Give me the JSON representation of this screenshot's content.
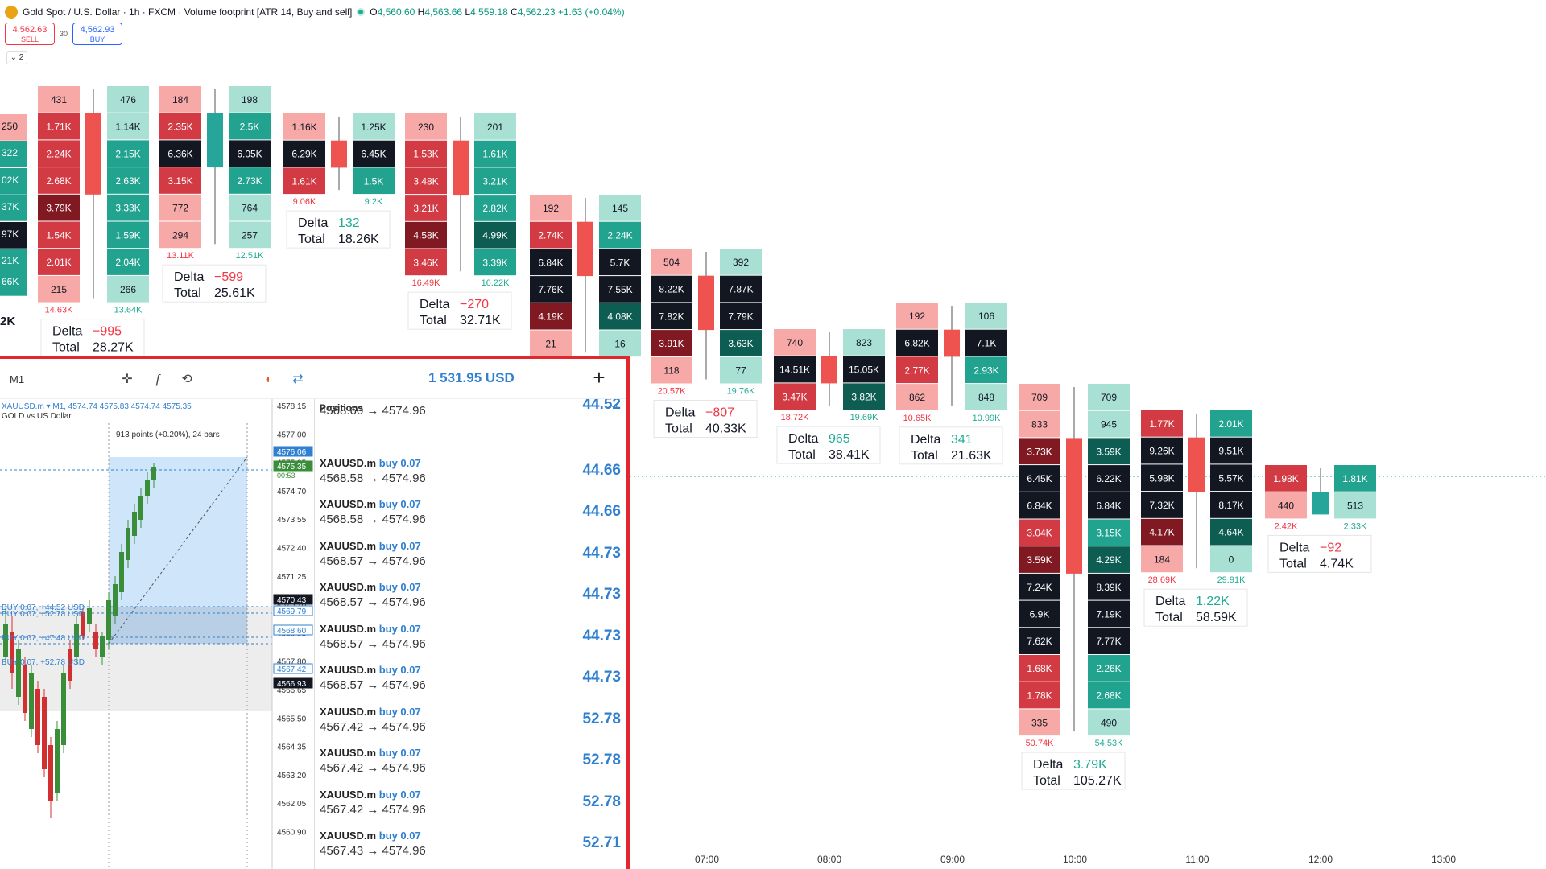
{
  "header": {
    "title": "Gold Spot / U.S. Dollar · 1h · FXCM · Volume footprint [ATR 14, Buy and sell]",
    "o": "4,560.60",
    "h": "4,563.66",
    "l": "4,559.18",
    "c": "4,562.23",
    "chg": "+1.63 (+0.04%)"
  },
  "trade": {
    "sell_price": "4,562.63",
    "sell_label": "SELL",
    "buy_price": "4,562.93",
    "buy_label": "BUY",
    "spread": "30"
  },
  "collapse_label": "⌄ 2",
  "colors": {
    "buy": "#26a69a",
    "sell": "#ef5350",
    "text_buy": "#22ab94",
    "text_sell": "#f23645",
    "accent": "#2f80d1"
  },
  "time_axis": [
    "07:00",
    "08:00",
    "09:00",
    "10:00",
    "11:00",
    "12:00",
    "13:00"
  ],
  "footprint": [
    {
      "sell": [
        "431",
        "1.71K",
        "2.24K",
        "2.68K",
        "3.79K",
        "1.54K",
        "2.01K",
        "215"
      ],
      "buy": [
        "476",
        "1.14K",
        "2.15K",
        "2.63K",
        "3.33K",
        "1.59K",
        "2.04K",
        "266"
      ],
      "sell_total": "14.63K",
      "buy_total": "13.64K",
      "delta": "−995",
      "delta_sign": "neg",
      "total": "28.27K",
      "candle": "down"
    },
    {
      "sell": [
        "184",
        "2.35K",
        "6.36K",
        "3.15K",
        "772",
        "294"
      ],
      "buy": [
        "198",
        "2.5K",
        "6.05K",
        "2.73K",
        "764",
        "257"
      ],
      "sell_total": "13.11K",
      "buy_total": "12.51K",
      "delta": "−599",
      "delta_sign": "neg",
      "total": "25.61K",
      "candle": "up"
    },
    {
      "sell": [
        "1.16K",
        "6.29K",
        "1.61K"
      ],
      "buy": [
        "1.25K",
        "6.45K",
        "1.5K"
      ],
      "sell_total": "9.06K",
      "buy_total": "9.2K",
      "delta": "132",
      "delta_sign": "pos",
      "total": "18.26K",
      "candle": "down"
    },
    {
      "sell": [
        "230",
        "1.53K",
        "3.48K",
        "3.21K",
        "4.58K",
        "3.46K"
      ],
      "buy": [
        "201",
        "1.61K",
        "3.21K",
        "2.82K",
        "4.99K",
        "3.39K"
      ],
      "sell_total": "16.49K",
      "buy_total": "16.22K",
      "delta": "−270",
      "delta_sign": "neg",
      "total": "32.71K",
      "candle": "down"
    },
    {
      "sell": [
        "192",
        "2.74K",
        "6.84K",
        "7.76K",
        "4.19K",
        "21"
      ],
      "buy": [
        "145",
        "2.24K",
        "5.7K",
        "7.55K",
        "4.08K",
        "16"
      ],
      "sell_total": "",
      "buy_total": "",
      "delta": "",
      "delta_sign": "neg",
      "total": "",
      "candle": "down"
    },
    {
      "sell": [
        "504",
        "8.22K",
        "7.82K",
        "3.91K",
        "118"
      ],
      "buy": [
        "392",
        "7.87K",
        "7.79K",
        "3.63K",
        "77"
      ],
      "sell_total": "20.57K",
      "buy_total": "19.76K",
      "delta": "−807",
      "delta_sign": "neg",
      "total": "40.33K",
      "candle": "down"
    },
    {
      "sell": [
        "740",
        "14.51K",
        "3.47K"
      ],
      "buy": [
        "823",
        "15.05K",
        "3.82K"
      ],
      "sell_total": "18.72K",
      "buy_total": "19.69K",
      "delta": "965",
      "delta_sign": "pos",
      "total": "38.41K",
      "candle": "down"
    },
    {
      "sell": [
        "192",
        "6.82K",
        "2.77K",
        "862"
      ],
      "buy": [
        "106",
        "7.1K",
        "2.93K",
        "848"
      ],
      "sell_total": "10.65K",
      "buy_total": "10.99K",
      "delta": "341",
      "delta_sign": "pos",
      "total": "21.63K",
      "candle": "down"
    },
    {
      "sell": [
        "709",
        "833",
        "3.73K",
        "6.45K",
        "6.84K",
        "3.04K",
        "3.59K",
        "7.24K",
        "6.9K",
        "7.62K",
        "1.68K",
        "1.78K",
        "335"
      ],
      "buy": [
        "709",
        "945",
        "3.59K",
        "6.22K",
        "6.84K",
        "3.15K",
        "4.29K",
        "8.39K",
        "7.19K",
        "7.77K",
        "2.26K",
        "2.68K",
        "490"
      ],
      "sell_total": "50.74K",
      "buy_total": "54.53K",
      "delta": "3.79K",
      "delta_sign": "pos",
      "total": "105.27K",
      "candle": "down"
    },
    {
      "sell": [
        "1.77K",
        "9.26K",
        "5.98K",
        "7.32K",
        "4.17K",
        "184"
      ],
      "buy": [
        "2.01K",
        "9.51K",
        "5.57K",
        "8.17K",
        "4.64K",
        "0"
      ],
      "sell_total": "28.69K",
      "buy_total": "29.91K",
      "delta": "1.22K",
      "delta_sign": "pos",
      "total": "58.59K",
      "candle": "down"
    },
    {
      "sell": [
        "1.98K",
        "440"
      ],
      "buy": [
        "1.81K",
        "513"
      ],
      "sell_total": "2.42K",
      "buy_total": "2.33K",
      "delta": "−92",
      "delta_sign": "neg",
      "total": "4.74K",
      "candle": "up"
    }
  ],
  "edge_labels": [
    "250",
    "322",
    "02K",
    "37K",
    "97K",
    "21K",
    "66K",
    "2K"
  ],
  "delta_label": "Delta",
  "total_label": "Total",
  "overlay": {
    "timeframe": "M1",
    "balance": "1 531.95 USD",
    "symbol_line": "XAUUSD.m ▾ M1, 4574.74 4575.83 4574.74 4575.35",
    "symbol_desc": "GOLD vs US Dollar",
    "measure": "913 points (+0.20%), 24 bars",
    "price_ticks": [
      "4578.15",
      "4577.00",
      "4575.85",
      "4574.70",
      "4573.55",
      "4572.40",
      "4571.25",
      "4570.10",
      "4568.95",
      "4567.80",
      "4566.65",
      "4565.50",
      "4564.35",
      "4563.20",
      "4562.05",
      "4560.90"
    ],
    "price_tags": {
      "a": "4576.06",
      "b": "4575.35",
      "b_time": "00:53",
      "c": "4570.43",
      "d": "4569.79",
      "e": "4568.60",
      "f": "4567.42",
      "g": "4566.93"
    },
    "pos_title": "Positions",
    "positions": [
      {
        "sym": "XAUUSD.m",
        "side": "buy 0.07",
        "prices": "4568.60 → 4574.96",
        "profit": "44.52"
      },
      {
        "sym": "XAUUSD.m",
        "side": "buy 0.07",
        "prices": "4568.58 → 4574.96",
        "profit": "44.66"
      },
      {
        "sym": "XAUUSD.m",
        "side": "buy 0.07",
        "prices": "4568.58 → 4574.96",
        "profit": "44.66"
      },
      {
        "sym": "XAUUSD.m",
        "side": "buy 0.07",
        "prices": "4568.57 → 4574.96",
        "profit": "44.73"
      },
      {
        "sym": "XAUUSD.m",
        "side": "buy 0.07",
        "prices": "4568.57 → 4574.96",
        "profit": "44.73"
      },
      {
        "sym": "XAUUSD.m",
        "side": "buy 0.07",
        "prices": "4568.57 → 4574.96",
        "profit": "44.73"
      },
      {
        "sym": "XAUUSD.m",
        "side": "buy 0.07",
        "prices": "4568.57 → 4574.96",
        "profit": "44.73"
      },
      {
        "sym": "XAUUSD.m",
        "side": "buy 0.07",
        "prices": "4567.42 → 4574.96",
        "profit": "52.78"
      },
      {
        "sym": "XAUUSD.m",
        "side": "buy 0.07",
        "prices": "4567.42 → 4574.96",
        "profit": "52.78"
      },
      {
        "sym": "XAUUSD.m",
        "side": "buy 0.07",
        "prices": "4567.42 → 4574.96",
        "profit": "52.78"
      },
      {
        "sym": "XAUUSD.m",
        "side": "buy 0.07",
        "prices": "4567.43 → 4574.96",
        "profit": "52.71"
      }
    ],
    "line_labels": [
      "BUY 0.07, +44.52 USD",
      "BUY 0.07, +52.78 USD",
      "BUY 0.07, +47.48 USD",
      "BUY 0.07, +52.78 USD"
    ]
  }
}
